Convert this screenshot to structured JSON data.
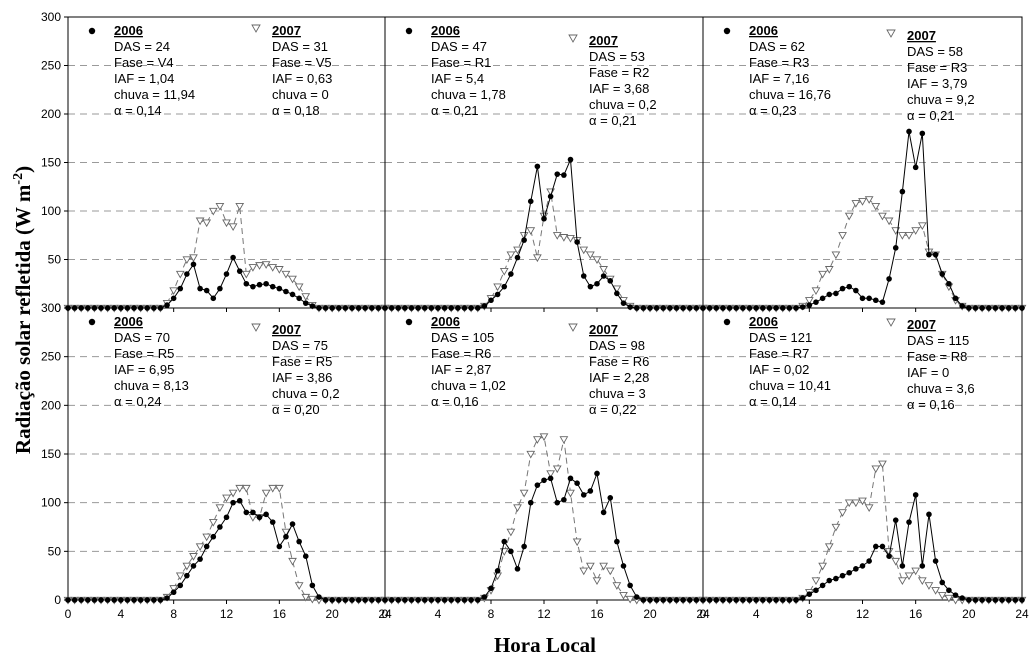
{
  "chart_data": {
    "type": "line",
    "ylabel": "Radiação solar refletida (W m",
    "ylabel_sup": "-2",
    "ylabel_close": ")",
    "xlabel": "Hora Local",
    "xlim": [
      0,
      24
    ],
    "ylim": [
      0,
      300
    ],
    "xticks": [
      "0",
      "4",
      "8",
      "12",
      "16",
      "20",
      "24"
    ],
    "yticks": [
      "0",
      "50",
      "100",
      "150",
      "200",
      "250",
      "300"
    ],
    "grid": "horizontal dashed",
    "series_style": {
      "2006": "black filled circles, solid line",
      "2007": "open inverted triangles, dashed line"
    },
    "panels": [
      {
        "y2006": [
          0,
          0,
          0,
          0,
          0,
          0,
          0,
          0,
          0,
          0,
          0,
          0,
          0,
          0,
          0,
          3,
          10,
          20,
          35,
          45,
          20,
          18,
          10,
          20,
          35,
          52,
          38,
          25,
          22,
          24,
          25,
          22,
          20,
          17,
          14,
          10,
          5,
          2,
          0,
          0,
          0,
          0,
          0,
          0,
          0,
          0,
          0,
          0,
          0
        ],
        "y2007": [
          0,
          0,
          0,
          0,
          0,
          0,
          0,
          0,
          0,
          0,
          0,
          0,
          0,
          0,
          0,
          5,
          18,
          35,
          50,
          52,
          90,
          88,
          100,
          105,
          88,
          84,
          105,
          35,
          42,
          44,
          45,
          42,
          40,
          35,
          30,
          22,
          12,
          3,
          0,
          0,
          0,
          0,
          0,
          0,
          0,
          0,
          0,
          0,
          0
        ],
        "ann2006": [
          "2006",
          "DAS = 24",
          "Fase = V4",
          "IAF = 1,04",
          "chuva = 11,94",
          "α = 0,14"
        ],
        "ann2007": [
          "2007",
          "DAS = 31",
          "Fase = V5",
          "IAF = 0,63",
          "chuva = 0",
          "α = 0,18"
        ]
      },
      {
        "y2006": [
          0,
          0,
          0,
          0,
          0,
          0,
          0,
          0,
          0,
          0,
          0,
          0,
          0,
          0,
          0,
          2,
          8,
          14,
          22,
          35,
          52,
          70,
          110,
          146,
          92,
          115,
          138,
          137,
          153,
          68,
          33,
          22,
          25,
          33,
          28,
          15,
          5,
          1,
          0,
          0,
          0,
          0,
          0,
          0,
          0,
          0,
          0,
          0,
          0
        ],
        "y2007": [
          0,
          0,
          0,
          0,
          0,
          0,
          0,
          0,
          0,
          0,
          0,
          0,
          0,
          0,
          0,
          2,
          10,
          22,
          38,
          55,
          60,
          75,
          80,
          52,
          95,
          120,
          75,
          73,
          72,
          70,
          60,
          55,
          50,
          40,
          30,
          20,
          8,
          2,
          0,
          0,
          0,
          0,
          0,
          0,
          0,
          0,
          0,
          0,
          0
        ],
        "ann2006": [
          "2006",
          "DAS = 47",
          "Fase = R1",
          "IAF = 5,4",
          "chuva = 1,78",
          "α = 0,21"
        ],
        "ann2007": [
          "2007",
          "DAS = 53",
          "Fase = R2",
          "IAF = 3,68",
          "chuva = 0,2",
          "α = 0,21"
        ]
      },
      {
        "y2006": [
          0,
          0,
          0,
          0,
          0,
          0,
          0,
          0,
          0,
          0,
          0,
          0,
          0,
          0,
          0,
          1,
          3,
          6,
          10,
          14,
          15,
          20,
          22,
          18,
          10,
          10,
          8,
          6,
          30,
          62,
          120,
          182,
          145,
          180,
          55,
          55,
          35,
          25,
          10,
          2,
          0,
          0,
          0,
          0,
          0,
          0,
          0,
          0,
          0
        ],
        "y2007": [
          0,
          0,
          0,
          0,
          0,
          0,
          0,
          0,
          0,
          0,
          0,
          0,
          0,
          0,
          0,
          2,
          8,
          18,
          35,
          40,
          55,
          75,
          95,
          108,
          110,
          112,
          105,
          95,
          90,
          80,
          75,
          75,
          80,
          85,
          58,
          55,
          35,
          22,
          8,
          2,
          0,
          0,
          0,
          0,
          0,
          0,
          0,
          0,
          0
        ],
        "ann2006": [
          "2006",
          "DAS = 62",
          "Fase = R3",
          "IAF = 7,16",
          "chuva = 16,76",
          "α = 0,23"
        ],
        "ann2007": [
          "2007",
          "DAS = 58",
          "Fase = R3",
          "IAF = 3,79",
          "chuva = 9,2",
          "α = 0,21"
        ]
      },
      {
        "y2006": [
          0,
          0,
          0,
          0,
          0,
          0,
          0,
          0,
          0,
          0,
          0,
          0,
          0,
          0,
          0,
          2,
          8,
          15,
          25,
          35,
          42,
          55,
          65,
          75,
          85,
          100,
          102,
          90,
          90,
          85,
          88,
          80,
          55,
          65,
          78,
          60,
          45,
          15,
          3,
          0,
          0,
          0,
          0,
          0,
          0,
          0,
          0,
          0,
          0
        ],
        "y2007": [
          0,
          0,
          0,
          0,
          0,
          0,
          0,
          0,
          0,
          0,
          0,
          0,
          0,
          0,
          0,
          3,
          12,
          25,
          35,
          45,
          55,
          65,
          80,
          95,
          105,
          110,
          115,
          115,
          85,
          85,
          110,
          115,
          115,
          70,
          40,
          15,
          3,
          1,
          0,
          0,
          0,
          0,
          0,
          0,
          0,
          0,
          0,
          0,
          0
        ],
        "ann2006": [
          "2006",
          "DAS = 70",
          "Fase = R5",
          "IAF = 6,95",
          "chuva = 8,13",
          "α = 0,24"
        ],
        "ann2007": [
          "2007",
          "DAS = 75",
          "Fase = R5",
          "IAF = 3,86",
          "chuva = 0,2",
          "α = 0,20"
        ]
      },
      {
        "y2006": [
          0,
          0,
          0,
          0,
          0,
          0,
          0,
          0,
          0,
          0,
          0,
          0,
          0,
          0,
          0,
          3,
          12,
          30,
          60,
          50,
          32,
          55,
          100,
          118,
          123,
          125,
          100,
          103,
          125,
          120,
          108,
          112,
          130,
          90,
          105,
          60,
          35,
          15,
          3,
          0,
          0,
          0,
          0,
          0,
          0,
          0,
          0,
          0,
          0
        ],
        "y2007": [
          0,
          0,
          0,
          0,
          0,
          0,
          0,
          0,
          0,
          0,
          0,
          0,
          0,
          0,
          0,
          2,
          10,
          25,
          50,
          70,
          95,
          110,
          150,
          165,
          168,
          130,
          135,
          165,
          110,
          60,
          30,
          35,
          20,
          35,
          30,
          15,
          5,
          1,
          0,
          0,
          0,
          0,
          0,
          0,
          0,
          0,
          0,
          0,
          0
        ],
        "ann2006": [
          "2006",
          "DAS = 105",
          "Fase = R6",
          "IAF = 2,87",
          "chuva = 1,02",
          "α = 0,16"
        ],
        "ann2007": [
          "2007",
          "DAS = 98",
          "Fase = R6",
          "IAF = 2,28",
          "chuva = 3",
          "α = 0,22"
        ]
      },
      {
        "y2006": [
          0,
          0,
          0,
          0,
          0,
          0,
          0,
          0,
          0,
          0,
          0,
          0,
          0,
          0,
          0,
          2,
          6,
          10,
          15,
          20,
          22,
          25,
          28,
          32,
          35,
          40,
          55,
          55,
          45,
          82,
          35,
          80,
          108,
          35,
          88,
          40,
          18,
          10,
          5,
          2,
          0,
          0,
          0,
          0,
          0,
          0,
          0,
          0,
          0
        ],
        "y2007": [
          0,
          0,
          0,
          0,
          0,
          0,
          0,
          0,
          0,
          0,
          0,
          0,
          0,
          0,
          0,
          2,
          8,
          20,
          35,
          55,
          75,
          90,
          100,
          100,
          102,
          95,
          135,
          140,
          50,
          40,
          20,
          25,
          30,
          20,
          15,
          10,
          5,
          2,
          0,
          0,
          0,
          0,
          0,
          0,
          0,
          0,
          0,
          0,
          0
        ],
        "ann2006": [
          "2006",
          "DAS = 121",
          "Fase = R7",
          "IAF = 0,02",
          "chuva = 10,41",
          "α = 0,14"
        ],
        "ann2007": [
          "2007",
          "DAS = 115",
          "Fase = R8",
          "IAF = 0",
          "chuva = 3,6",
          "α = 0,16"
        ]
      }
    ]
  }
}
